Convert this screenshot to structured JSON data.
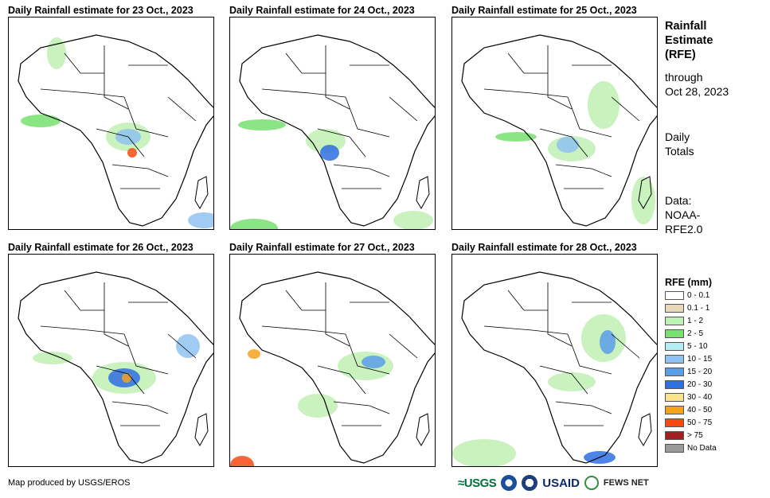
{
  "panels": [
    {
      "title": "Daily Rainfall estimate for 23 Oct., 2023"
    },
    {
      "title": "Daily Rainfall estimate for 24 Oct., 2023"
    },
    {
      "title": "Daily Rainfall estimate for 25 Oct., 2023"
    },
    {
      "title": "Daily Rainfall estimate for 26 Oct., 2023"
    },
    {
      "title": "Daily Rainfall estimate for 27 Oct., 2023"
    },
    {
      "title": "Daily Rainfall estimate for 28 Oct., 2023"
    }
  ],
  "side": {
    "title_lines": [
      "Rainfall",
      "Estimate",
      "(RFE)"
    ],
    "through_lines": [
      "through",
      "Oct 28, 2023"
    ],
    "daily_lines": [
      "Daily",
      "Totals"
    ],
    "data_lines": [
      "Data:",
      "NOAA-",
      "RFE2.0"
    ]
  },
  "legend": {
    "title": "RFE (mm)",
    "items": [
      {
        "label": "0 - 0.1",
        "color": "#ffffff"
      },
      {
        "label": "0.1 - 1",
        "color": "#e9d8b8"
      },
      {
        "label": "1 - 2",
        "color": "#bff0b4"
      },
      {
        "label": "2 - 5",
        "color": "#78e070"
      },
      {
        "label": "5 - 10",
        "color": "#b4eef4"
      },
      {
        "label": "10 - 15",
        "color": "#8fc2f0"
      },
      {
        "label": "15 - 20",
        "color": "#5a9ee8"
      },
      {
        "label": "20 - 30",
        "color": "#2f6fe0"
      },
      {
        "label": "30 - 40",
        "color": "#f8e48c"
      },
      {
        "label": "40 - 50",
        "color": "#f4a21e"
      },
      {
        "label": "50 - 75",
        "color": "#f44a12"
      },
      {
        "label": "> 75",
        "color": "#a42020"
      },
      {
        "label": "No Data",
        "color": "#9a9a9a"
      }
    ]
  },
  "credit": "Map produced by USGS/EROS",
  "logos": {
    "usgs": "≈USGS",
    "usaid": "USAID",
    "fews": "FEWS NET"
  }
}
